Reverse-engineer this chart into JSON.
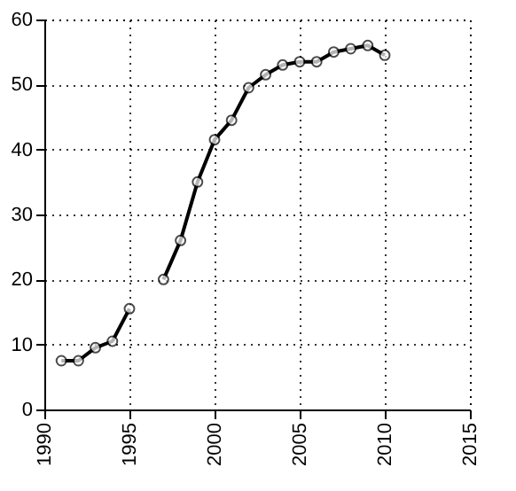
{
  "chart_data": {
    "type": "line",
    "x": [
      1991,
      1992,
      1993,
      1994,
      1995,
      1996,
      1997,
      1998,
      1999,
      2000,
      2001,
      2002,
      2003,
      2004,
      2005,
      2006,
      2007,
      2008,
      2009,
      2010
    ],
    "series": [
      {
        "color": "#000000",
        "values": [
          7.5,
          7.5,
          9.5,
          10.5,
          15.5,
          null,
          20,
          26,
          35,
          41.5,
          44.5,
          49.5,
          51.5,
          53,
          53.5,
          53.5,
          55,
          55.5,
          56,
          54.5
        ]
      }
    ],
    "xlim": [
      1990,
      2015
    ],
    "xticks": [
      1990,
      1995,
      2000,
      2005,
      2010,
      2015
    ],
    "ylim": [
      0,
      60
    ],
    "yticks": [
      0,
      10,
      20,
      30,
      40,
      50,
      60
    ],
    "grid": true,
    "marker": "circle",
    "line_style": "solid"
  }
}
